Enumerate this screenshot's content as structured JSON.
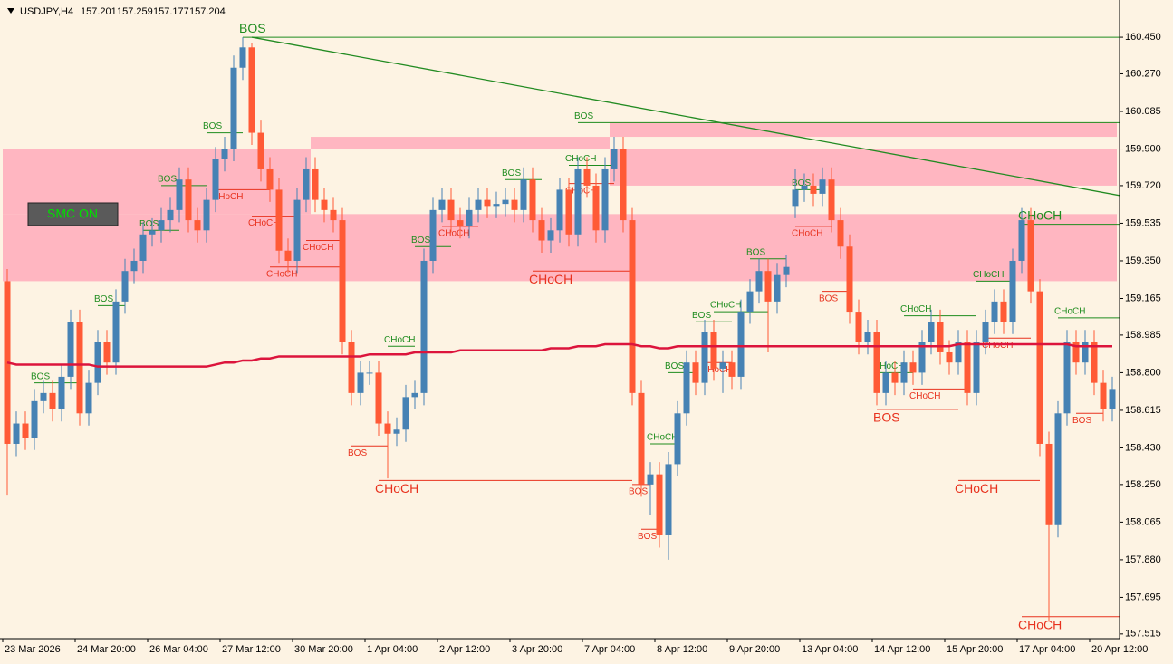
{
  "header": {
    "symbol": "USDJPY,H4",
    "prices": [
      "157.201",
      "157.259",
      "157.177",
      "157.204"
    ]
  },
  "button": {
    "label": "SMC ON"
  },
  "chart_data": {
    "type": "candlestick",
    "categories": [
      "23 Mar 2026",
      null,
      null,
      null,
      null,
      null,
      null,
      null,
      "24 Mar 20:00",
      null,
      null,
      null,
      null,
      null,
      null,
      null,
      "26 Mar 04:00",
      null,
      null,
      null,
      null,
      null,
      null,
      null,
      "27 Mar 12:00",
      null,
      null,
      null,
      null,
      null,
      null,
      null,
      "30 Mar 20:00",
      null,
      null,
      null,
      null,
      null,
      null,
      null,
      "1 Apr 04:00",
      null,
      null,
      null,
      null,
      null,
      null,
      null,
      "2 Apr 12:00",
      null,
      null,
      null,
      null,
      null,
      null,
      null,
      "3 Apr 20:00",
      null,
      null,
      null,
      null,
      null,
      null,
      null,
      "7 Apr 04:00",
      null,
      null,
      null,
      null,
      null,
      null,
      null,
      "8 Apr 12:00",
      null,
      null,
      null,
      null,
      null,
      null,
      null,
      "9 Apr 20:00",
      null,
      null,
      null,
      null,
      null,
      null,
      null,
      "13 Apr 04:00",
      null,
      null,
      null,
      null,
      null,
      null,
      null,
      "14 Apr 12:00",
      null,
      null,
      null,
      null,
      null,
      null,
      null,
      "15 Apr 20:00",
      null,
      null,
      null,
      null,
      null,
      null,
      null,
      "17 Apr 04:00",
      null,
      null,
      null,
      null,
      null,
      null,
      null,
      "20 Apr 12:00",
      null,
      null
    ],
    "open": [
      159.25,
      158.45,
      158.55,
      158.48,
      158.66,
      158.7,
      158.62,
      158.78,
      159.05,
      158.6,
      158.75,
      158.95,
      158.85,
      159.15,
      159.3,
      159.35,
      159.48,
      159.5,
      159.55,
      159.6,
      159.75,
      159.55,
      159.5,
      159.65,
      159.85,
      159.9,
      160.3,
      160.4,
      159.98,
      159.8,
      159.7,
      159.4,
      159.35,
      159.65,
      159.8,
      159.65,
      159.6,
      159.55,
      158.95,
      158.7,
      158.8,
      158.8,
      158.55,
      158.5,
      158.52,
      158.68,
      158.7,
      159.35,
      159.6,
      159.65,
      159.55,
      159.52,
      159.6,
      159.65,
      159.62,
      159.63,
      159.65,
      159.6,
      159.75,
      159.55,
      159.45,
      159.5,
      159.7,
      159.48,
      159.8,
      159.72,
      159.5,
      159.8,
      159.9,
      159.55,
      158.7,
      158.25,
      158.3,
      158.0,
      158.35,
      158.6,
      158.85,
      158.75,
      159.0,
      158.82,
      158.85,
      158.78,
      159.1,
      159.2,
      159.3,
      159.15,
      159.28,
      159.62,
      159.7,
      159.72,
      159.68,
      159.75,
      159.55,
      159.42,
      159.1,
      158.95,
      159.0,
      158.7,
      158.8,
      158.75,
      158.85,
      158.8,
      158.95,
      159.05,
      158.9,
      158.85,
      158.95,
      158.7,
      158.95,
      159.05,
      159.15,
      159.05,
      159.35,
      159.55,
      159.2,
      158.45,
      158.05,
      158.6,
      158.95,
      158.85,
      158.95,
      158.75,
      158.62
    ],
    "high": [
      159.31,
      158.61,
      158.61,
      158.72,
      158.76,
      158.76,
      158.84,
      159.11,
      159.11,
      158.81,
      159.01,
      159.01,
      159.21,
      159.36,
      159.41,
      159.54,
      159.56,
      159.61,
      159.66,
      159.81,
      159.81,
      159.61,
      159.71,
      159.91,
      159.96,
      160.36,
      160.45,
      160.42,
      160.04,
      159.86,
      159.76,
      159.46,
      159.71,
      159.86,
      159.86,
      159.71,
      159.66,
      159.61,
      159.01,
      158.86,
      158.86,
      158.86,
      158.61,
      158.58,
      158.74,
      158.76,
      159.41,
      159.66,
      159.71,
      159.71,
      159.61,
      159.66,
      159.71,
      159.71,
      159.69,
      159.71,
      159.71,
      159.81,
      159.81,
      159.61,
      159.56,
      159.76,
      159.76,
      159.86,
      159.86,
      159.78,
      159.86,
      159.96,
      159.96,
      159.61,
      158.76,
      158.36,
      158.36,
      158.41,
      158.66,
      158.91,
      158.91,
      159.06,
      159.06,
      158.91,
      158.91,
      159.16,
      159.26,
      159.36,
      159.36,
      159.34,
      159.38,
      159.8,
      159.78,
      159.78,
      159.81,
      159.81,
      159.61,
      159.48,
      159.16,
      159.06,
      159.06,
      158.86,
      158.86,
      158.91,
      158.91,
      159.01,
      159.11,
      159.11,
      158.96,
      159.01,
      159.01,
      159.01,
      159.11,
      159.21,
      159.21,
      159.41,
      159.61,
      159.61,
      159.26,
      158.51,
      158.66,
      159.01,
      159.01,
      159.01,
      159.01,
      158.81,
      158.78
    ],
    "low": [
      158.2,
      158.39,
      158.42,
      158.42,
      158.6,
      158.56,
      158.56,
      158.72,
      158.54,
      158.54,
      158.69,
      158.79,
      158.79,
      159.09,
      159.24,
      159.29,
      159.42,
      159.44,
      159.49,
      159.54,
      159.49,
      159.44,
      159.44,
      159.59,
      159.79,
      159.84,
      160.24,
      159.92,
      159.74,
      159.64,
      159.34,
      159.29,
      159.29,
      159.59,
      159.59,
      159.54,
      159.49,
      158.89,
      158.64,
      158.64,
      158.74,
      158.49,
      158.28,
      158.44,
      158.46,
      158.62,
      158.64,
      159.29,
      159.54,
      159.49,
      159.46,
      159.46,
      159.54,
      159.56,
      159.56,
      159.57,
      159.54,
      159.54,
      159.49,
      159.39,
      159.39,
      159.44,
      159.42,
      159.42,
      159.66,
      159.44,
      159.44,
      159.74,
      159.49,
      158.64,
      158.19,
      158.1,
      157.94,
      157.88,
      158.29,
      158.54,
      158.69,
      158.69,
      158.76,
      158.7,
      158.72,
      158.72,
      159.04,
      159.14,
      158.9,
      159.09,
      159.22,
      159.56,
      159.64,
      159.62,
      159.62,
      159.49,
      159.36,
      159.04,
      158.89,
      158.89,
      158.64,
      158.64,
      158.69,
      158.69,
      158.74,
      158.74,
      158.89,
      158.84,
      158.79,
      158.79,
      158.64,
      158.64,
      158.89,
      158.99,
      158.99,
      158.99,
      159.29,
      159.14,
      158.39,
      157.58,
      157.99,
      158.54,
      158.79,
      158.79,
      158.69,
      158.56,
      158.56
    ],
    "close": [
      158.45,
      158.55,
      158.48,
      158.66,
      158.7,
      158.62,
      158.78,
      159.05,
      158.6,
      158.75,
      158.95,
      158.85,
      159.15,
      159.3,
      159.35,
      159.48,
      159.5,
      159.55,
      159.6,
      159.75,
      159.55,
      159.5,
      159.65,
      159.85,
      159.9,
      160.3,
      160.4,
      159.98,
      159.8,
      159.7,
      159.4,
      159.35,
      159.65,
      159.8,
      159.65,
      159.6,
      159.55,
      158.95,
      158.7,
      158.8,
      158.8,
      158.55,
      158.5,
      158.52,
      158.68,
      158.7,
      159.35,
      159.6,
      159.65,
      159.55,
      159.52,
      159.6,
      159.65,
      159.62,
      159.63,
      159.65,
      159.6,
      159.75,
      159.55,
      159.45,
      159.5,
      159.7,
      159.48,
      159.8,
      159.72,
      159.5,
      159.8,
      159.9,
      159.55,
      158.7,
      158.25,
      158.3,
      158.0,
      158.35,
      158.6,
      158.85,
      158.75,
      159.0,
      158.82,
      158.85,
      158.78,
      159.1,
      159.2,
      159.3,
      159.15,
      159.28,
      159.32,
      159.7,
      159.72,
      159.68,
      159.75,
      159.55,
      159.42,
      159.1,
      158.95,
      159.0,
      158.7,
      158.8,
      158.75,
      158.85,
      158.8,
      158.95,
      159.05,
      158.9,
      158.85,
      158.95,
      158.7,
      158.95,
      159.05,
      159.15,
      159.05,
      159.35,
      159.55,
      159.2,
      158.45,
      158.05,
      158.6,
      158.95,
      158.85,
      158.95,
      158.75,
      158.62,
      158.72
    ],
    "up_color": "#4682b4",
    "down_color": "#ff5a36",
    "lines": [
      {
        "color": "#dc143c",
        "values": [
          158.85,
          158.84,
          158.84,
          158.84,
          158.84,
          158.84,
          158.84,
          158.84,
          158.84,
          158.84,
          158.83,
          158.83,
          158.83,
          158.83,
          158.83,
          158.83,
          158.83,
          158.83,
          158.83,
          158.83,
          158.83,
          158.83,
          158.83,
          158.84,
          158.85,
          158.85,
          158.86,
          158.86,
          158.87,
          158.87,
          158.88,
          158.88,
          158.88,
          158.88,
          158.88,
          158.88,
          158.88,
          158.88,
          158.88,
          158.88,
          158.89,
          158.89,
          158.89,
          158.89,
          158.89,
          158.9,
          158.9,
          158.9,
          158.9,
          158.9,
          158.91,
          158.91,
          158.91,
          158.91,
          158.91,
          158.91,
          158.91,
          158.91,
          158.91,
          158.91,
          158.92,
          158.92,
          158.92,
          158.93,
          158.93,
          158.93,
          158.94,
          158.94,
          158.94,
          158.94,
          158.93,
          158.93,
          158.92,
          158.92,
          158.93,
          158.93,
          158.93,
          158.93,
          158.93,
          158.93,
          158.93,
          158.93,
          158.93,
          158.93,
          158.93,
          158.93,
          158.93,
          158.93,
          158.93,
          158.93,
          158.93,
          158.93,
          158.93,
          158.93,
          158.93,
          158.93,
          158.93,
          158.93,
          158.93,
          158.93,
          158.93,
          158.93,
          158.93,
          158.93,
          158.93,
          158.94,
          158.94,
          158.94,
          158.94,
          158.94,
          158.94,
          158.94,
          158.94,
          158.94,
          158.94,
          158.94,
          158.94,
          158.94,
          158.93,
          158.93,
          158.93,
          158.93,
          158.93
        ]
      }
    ],
    "zone_color": "#ffb6c1",
    "zones": [
      {
        "from": 0,
        "to": 34,
        "top": 159.9,
        "bottom": 159.58
      },
      {
        "from": 0,
        "to": 123,
        "top": 159.58,
        "bottom": 159.25
      },
      {
        "from": 34,
        "to": 67,
        "top": 159.96,
        "bottom": 159.9
      },
      {
        "from": 67,
        "to": 123,
        "top": 160.03,
        "bottom": 159.96
      },
      {
        "from": 67,
        "to": 123,
        "top": 159.9,
        "bottom": 159.72
      }
    ],
    "trendline": {
      "x": [
        27,
        123
      ],
      "y": [
        160.45,
        159.67
      ],
      "color": "#228b22"
    },
    "annotation_colors": {
      "green": "#1e8c1e",
      "red": "#e8321e"
    },
    "annotations": [
      {
        "text": "BOS",
        "price": 160.45,
        "from": 26,
        "to": 123,
        "color": "green",
        "size": "large"
      },
      {
        "text": "BOS",
        "price": 160.03,
        "from": 63,
        "to": 123,
        "color": "green"
      },
      {
        "text": "CHoCH",
        "price": 159.53,
        "from": 112,
        "to": 123,
        "color": "green",
        "size": "large"
      },
      {
        "text": "CHoCH",
        "price": 158.27,
        "from": 41,
        "to": 69,
        "color": "red",
        "size": "large"
      },
      {
        "text": "CHoCH",
        "price": 158.27,
        "from": 105,
        "to": 114,
        "color": "red",
        "size": "large"
      },
      {
        "text": "BOS",
        "price": 158.62,
        "from": 96,
        "to": 105,
        "color": "red",
        "size": "large"
      },
      {
        "text": "CHoCH",
        "price": 157.6,
        "from": 112,
        "to": 123,
        "color": "red",
        "size": "large"
      },
      {
        "text": "CHoCH",
        "price": 159.3,
        "from": 58,
        "to": 69,
        "color": "red",
        "size": "large"
      },
      {
        "text": "BOS",
        "price": 159.98,
        "from": 22,
        "to": 26,
        "color": "green"
      },
      {
        "text": "BOS",
        "price": 159.72,
        "from": 17,
        "to": 22,
        "color": "green"
      },
      {
        "text": "BOS",
        "price": 159.5,
        "from": 15,
        "to": 19,
        "color": "green"
      },
      {
        "text": "BOS",
        "price": 159.13,
        "from": 10,
        "to": 13,
        "color": "green"
      },
      {
        "text": "BOS",
        "price": 158.75,
        "from": 3,
        "to": 8,
        "color": "green"
      },
      {
        "text": "CHoCH",
        "price": 159.7,
        "from": 23,
        "to": 29,
        "color": "red"
      },
      {
        "text": "CHoCH",
        "price": 159.57,
        "from": 27,
        "to": 32,
        "color": "red"
      },
      {
        "text": "CHoCH",
        "price": 159.32,
        "from": 29,
        "to": 37,
        "color": "red"
      },
      {
        "text": "CHoCH",
        "price": 159.45,
        "from": 33,
        "to": 37,
        "color": "red"
      },
      {
        "text": "BOS",
        "price": 158.44,
        "from": 38,
        "to": 42,
        "color": "red"
      },
      {
        "text": "CHoCH",
        "price": 158.93,
        "from": 42,
        "to": 45,
        "color": "green"
      },
      {
        "text": "BOS",
        "price": 159.42,
        "from": 45,
        "to": 49,
        "color": "green"
      },
      {
        "text": "CHoCH",
        "price": 159.52,
        "from": 48,
        "to": 52,
        "color": "red"
      },
      {
        "text": "BOS",
        "price": 159.75,
        "from": 55,
        "to": 59,
        "color": "green"
      },
      {
        "text": "CHoCH",
        "price": 159.82,
        "from": 62,
        "to": 67,
        "color": "green"
      },
      {
        "text": "CHoCH",
        "price": 159.73,
        "from": 62,
        "to": 67,
        "color": "red"
      },
      {
        "text": "BOS",
        "price": 158.25,
        "from": 69,
        "to": 71,
        "color": "red"
      },
      {
        "text": "BOS",
        "price": 158.03,
        "from": 70,
        "to": 72,
        "color": "red"
      },
      {
        "text": "CHoCH",
        "price": 158.45,
        "from": 71,
        "to": 74,
        "color": "green"
      },
      {
        "text": "BOS",
        "price": 158.8,
        "from": 73,
        "to": 76,
        "color": "green"
      },
      {
        "text": "CHoCH",
        "price": 158.85,
        "from": 77,
        "to": 80,
        "color": "red"
      },
      {
        "text": "BOS",
        "price": 159.05,
        "from": 76,
        "to": 80,
        "color": "green"
      },
      {
        "text": "CHoCH",
        "price": 159.1,
        "from": 78,
        "to": 84,
        "color": "green"
      },
      {
        "text": "BOS",
        "price": 159.36,
        "from": 82,
        "to": 86,
        "color": "green"
      },
      {
        "text": "BOS",
        "price": 159.7,
        "from": 87,
        "to": 90,
        "color": "green"
      },
      {
        "text": "CHoCH",
        "price": 159.52,
        "from": 87,
        "to": 91,
        "color": "red"
      },
      {
        "text": "BOS",
        "price": 159.2,
        "from": 90,
        "to": 93,
        "color": "red"
      },
      {
        "text": "CHoCH",
        "price": 158.8,
        "from": 96,
        "to": 100,
        "color": "green"
      },
      {
        "text": "CHoCH",
        "price": 159.08,
        "from": 99,
        "to": 107,
        "color": "green"
      },
      {
        "text": "CHoCH",
        "price": 158.72,
        "from": 100,
        "to": 106,
        "color": "red"
      },
      {
        "text": "CHoCH",
        "price": 159.25,
        "from": 107,
        "to": 111,
        "color": "green"
      },
      {
        "text": "CHoCH",
        "price": 158.97,
        "from": 108,
        "to": 113,
        "color": "red"
      },
      {
        "text": "CHoCH",
        "price": 159.07,
        "from": 116,
        "to": 123,
        "color": "green"
      },
      {
        "text": "BOS",
        "price": 158.6,
        "from": 118,
        "to": 121,
        "color": "red"
      }
    ],
    "ylim": [
      157.492,
      160.633
    ],
    "yticks": [
      {
        "value": 160.45,
        "label": "160.450"
      },
      {
        "value": 160.27,
        "label": "160.270"
      },
      {
        "value": 160.085,
        "label": "160.085"
      },
      {
        "value": 159.9,
        "label": "159.900"
      },
      {
        "value": 159.72,
        "label": "159.720"
      },
      {
        "value": 159.535,
        "label": "159.535"
      },
      {
        "value": 159.35,
        "label": "159.350"
      },
      {
        "value": 159.165,
        "label": "159.165"
      },
      {
        "value": 158.985,
        "label": "158.985"
      },
      {
        "value": 158.8,
        "label": "158.800"
      },
      {
        "value": 158.615,
        "label": "158.615"
      },
      {
        "value": 158.43,
        "label": "158.430"
      },
      {
        "value": 158.25,
        "label": "158.250"
      },
      {
        "value": 158.065,
        "label": "158.065"
      },
      {
        "value": 157.88,
        "label": "157.880"
      },
      {
        "value": 157.695,
        "label": "157.695"
      },
      {
        "value": 157.515,
        "label": "157.515"
      }
    ]
  }
}
